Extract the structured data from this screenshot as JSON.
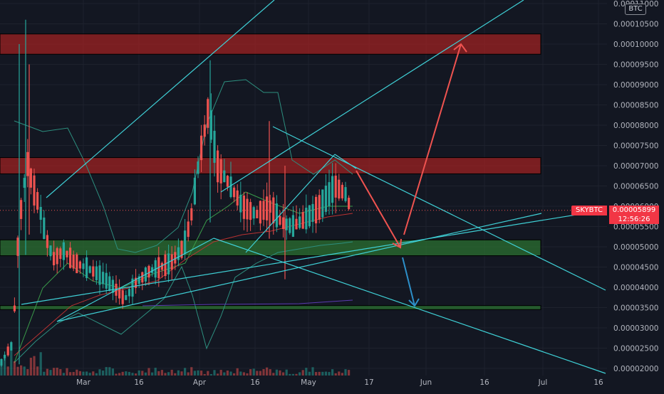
{
  "price_scale": {
    "currency": "BTC",
    "labels": [
      "0.00011000",
      "0.00010500",
      "0.00010000",
      "0.00009500",
      "0.00009000",
      "0.00008500",
      "0.00008000",
      "0.00007500",
      "0.00007000",
      "0.00006500",
      "0.00006000",
      "0.00005500",
      "0.00005000",
      "0.00004500",
      "0.00004000",
      "0.00003500",
      "0.00003000",
      "0.00002500",
      "0.00002000"
    ]
  },
  "time_scale": {
    "labels": [
      "Mar",
      "16",
      "Apr",
      "16",
      "May",
      "17",
      "Jun",
      "16",
      "Jul",
      "16"
    ]
  },
  "last_price": {
    "symbol": "SKYBTC",
    "value": "0.00005899",
    "countdown": "12:56:26"
  },
  "colors": {
    "background": "#131722",
    "up": "#26a69a",
    "down": "#ef5350",
    "trendline": "#3fd0d6",
    "resistance_zone": "#b22222",
    "support_zone": "#2e7d32",
    "arrow_up": "#ef5350",
    "arrow_down": "#2d8fc9"
  },
  "chart_data": {
    "type": "candlestick",
    "symbol": "SKYBTC",
    "ylim": [
      1.95e-05,
      0.0001105
    ],
    "zones": [
      {
        "kind": "resistance",
        "low": 9.75e-05,
        "high": 0.0001025
      },
      {
        "kind": "resistance",
        "low": 6.8e-05,
        "high": 7.2e-05
      },
      {
        "kind": "support",
        "low": 4.78e-05,
        "high": 5.17e-05
      },
      {
        "kind": "support",
        "low": 3.45e-05,
        "high": 3.55e-05
      }
    ],
    "last_price": 5.899e-05
  }
}
